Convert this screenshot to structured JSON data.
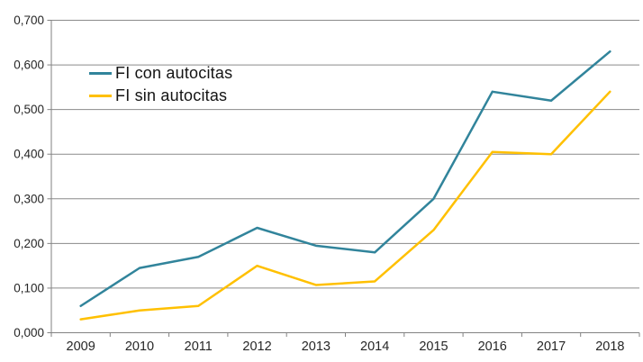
{
  "chart_data": {
    "type": "line",
    "title": "",
    "xlabel": "",
    "ylabel": "",
    "categories": [
      "2009",
      "2010",
      "2011",
      "2012",
      "2013",
      "2014",
      "2015",
      "2016",
      "2017",
      "2018"
    ],
    "series": [
      {
        "name": "FI con autocitas",
        "color": "#31849B",
        "values": [
          0.06,
          0.145,
          0.17,
          0.235,
          0.195,
          0.18,
          0.3,
          0.54,
          0.52,
          0.63
        ]
      },
      {
        "name": "FI sin autocitas",
        "color": "#FFC000",
        "values": [
          0.03,
          0.05,
          0.06,
          0.15,
          0.107,
          0.115,
          0.23,
          0.405,
          0.4,
          0.54
        ]
      }
    ],
    "ylim": [
      0,
      0.7
    ],
    "ytick_step": 0.1,
    "ytick_labels": [
      "0,000",
      "0,100",
      "0,200",
      "0,300",
      "0,400",
      "0,500",
      "0,600",
      "0,700"
    ],
    "grid": true,
    "legend_position": "inside-top-left"
  },
  "colors": {
    "background": "#ffffff",
    "axis": "#828282",
    "gridline": "#8a8a8a",
    "tick_label": "#262626",
    "legend_text": "#141414"
  }
}
